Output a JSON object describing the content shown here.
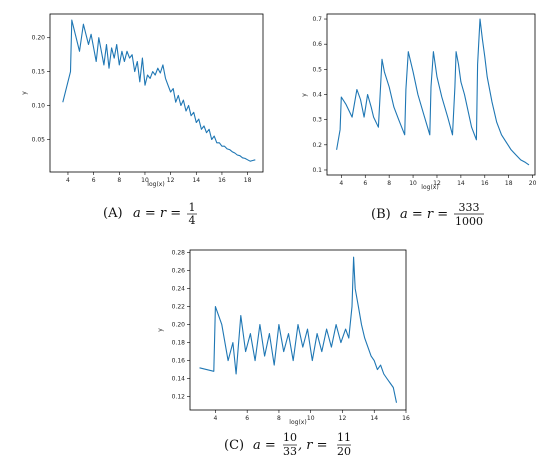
{
  "chart_data": [
    {
      "type": "line",
      "caption": {
        "label": "(A)",
        "math": "a = r =",
        "num": "1",
        "den": "4"
      },
      "xlabel": "log(x)",
      "ylabel": "y",
      "xlim": [
        2.6,
        19.2
      ],
      "ylim": [
        0.002,
        0.235
      ],
      "xticks": [
        4,
        6,
        8,
        10,
        12,
        14,
        16,
        18
      ],
      "yticks": [
        0.05,
        0.1,
        0.15,
        0.2
      ],
      "ytick_labels": [
        "0.05",
        "0.10",
        "0.15",
        "0.20"
      ],
      "series": [
        {
          "x": [
            3.6,
            4.2,
            4.3,
            4.9,
            5.2,
            5.6,
            5.8,
            6.2,
            6.4,
            6.8,
            7.0,
            7.2,
            7.4,
            7.6,
            7.8,
            8.0,
            8.2,
            8.4,
            8.6,
            8.8,
            9.0,
            9.2,
            9.4,
            9.6,
            9.8,
            10.0,
            10.2,
            10.4,
            10.6,
            10.8,
            11.0,
            11.2,
            11.4,
            11.6,
            11.8,
            12.0,
            12.2,
            12.4,
            12.6,
            12.8,
            13.0,
            13.2,
            13.4,
            13.6,
            13.8,
            14.0,
            14.2,
            14.4,
            14.6,
            14.8,
            15.0,
            15.2,
            15.4,
            15.6,
            15.8,
            16.0,
            16.2,
            16.4,
            16.6,
            16.8,
            17.0,
            17.2,
            17.4,
            17.6,
            17.8,
            18.0,
            18.2,
            18.4,
            18.6
          ],
          "y": [
            0.105,
            0.15,
            0.226,
            0.18,
            0.22,
            0.19,
            0.205,
            0.165,
            0.2,
            0.16,
            0.19,
            0.155,
            0.185,
            0.17,
            0.19,
            0.16,
            0.18,
            0.165,
            0.18,
            0.17,
            0.175,
            0.15,
            0.165,
            0.135,
            0.17,
            0.13,
            0.145,
            0.14,
            0.15,
            0.145,
            0.155,
            0.148,
            0.16,
            0.14,
            0.13,
            0.12,
            0.125,
            0.105,
            0.115,
            0.1,
            0.108,
            0.092,
            0.1,
            0.085,
            0.09,
            0.075,
            0.08,
            0.065,
            0.07,
            0.06,
            0.065,
            0.05,
            0.055,
            0.045,
            0.045,
            0.04,
            0.04,
            0.036,
            0.035,
            0.032,
            0.03,
            0.027,
            0.026,
            0.023,
            0.022,
            0.02,
            0.018,
            0.019,
            0.02
          ]
        }
      ]
    },
    {
      "type": "line",
      "caption": {
        "label": "(B)",
        "math": "a = r =",
        "num": "333",
        "den": "1000"
      },
      "xlabel": "log(x)",
      "ylabel": "y",
      "xlim": [
        2.8,
        20.2
      ],
      "ylim": [
        0.08,
        0.72
      ],
      "xticks": [
        4,
        6,
        8,
        10,
        12,
        14,
        16,
        18,
        20
      ],
      "yticks": [
        0.1,
        0.2,
        0.3,
        0.4,
        0.5,
        0.6,
        0.7
      ],
      "ytick_labels": [
        "0.1",
        "0.2",
        "0.3",
        "0.4",
        "0.5",
        "0.6",
        "0.7"
      ],
      "series": [
        {
          "x": [
            3.6,
            3.9,
            4.0,
            4.4,
            4.9,
            5.3,
            5.6,
            5.9,
            6.2,
            6.5,
            6.7,
            7.1,
            7.4,
            7.6,
            8.0,
            8.4,
            8.8,
            9.3,
            9.4,
            9.6,
            10.0,
            10.4,
            10.9,
            11.4,
            11.5,
            11.7,
            12.0,
            12.4,
            12.9,
            13.3,
            13.5,
            13.6,
            13.8,
            14.0,
            14.3,
            14.9,
            15.3,
            15.4,
            15.6,
            15.8,
            16.0,
            16.2,
            16.6,
            17.0,
            17.4,
            17.8,
            18.2,
            18.6,
            19.0,
            19.4,
            19.7
          ],
          "y": [
            0.18,
            0.26,
            0.39,
            0.36,
            0.31,
            0.42,
            0.38,
            0.31,
            0.4,
            0.35,
            0.31,
            0.27,
            0.54,
            0.49,
            0.43,
            0.35,
            0.3,
            0.24,
            0.42,
            0.57,
            0.49,
            0.4,
            0.32,
            0.24,
            0.43,
            0.57,
            0.47,
            0.39,
            0.31,
            0.24,
            0.43,
            0.57,
            0.52,
            0.45,
            0.4,
            0.27,
            0.22,
            0.52,
            0.7,
            0.62,
            0.55,
            0.47,
            0.37,
            0.29,
            0.24,
            0.21,
            0.18,
            0.16,
            0.14,
            0.13,
            0.12
          ]
        }
      ]
    },
    {
      "type": "line",
      "caption": {
        "label": "(C)",
        "math1": "a =",
        "num1": "10",
        "den1": "33",
        "math2": ", r =",
        "num2": "11",
        "den2": "20"
      },
      "xlabel": "log(x)",
      "ylabel": "y",
      "xlim": [
        2.4,
        16.0
      ],
      "ylim": [
        0.105,
        0.283
      ],
      "xticks": [
        4,
        6,
        8,
        10,
        12,
        14,
        16
      ],
      "yticks": [
        0.12,
        0.14,
        0.16,
        0.18,
        0.2,
        0.22,
        0.24,
        0.26,
        0.28
      ],
      "ytick_labels": [
        "0.12",
        "0.14",
        "0.16",
        "0.18",
        "0.20",
        "0.22",
        "0.24",
        "0.26",
        "0.28"
      ],
      "series": [
        {
          "x": [
            3.0,
            3.9,
            4.0,
            4.4,
            4.8,
            5.1,
            5.3,
            5.6,
            5.9,
            6.2,
            6.5,
            6.8,
            7.1,
            7.4,
            7.7,
            8.0,
            8.3,
            8.6,
            8.9,
            9.2,
            9.5,
            9.8,
            10.1,
            10.4,
            10.7,
            11.0,
            11.3,
            11.6,
            11.9,
            12.2,
            12.4,
            12.6,
            12.7,
            12.8,
            13.0,
            13.2,
            13.4,
            13.6,
            13.8,
            14.0,
            14.2,
            14.4,
            14.6,
            14.8,
            15.0,
            15.2,
            15.4
          ],
          "y": [
            0.152,
            0.148,
            0.22,
            0.2,
            0.16,
            0.18,
            0.145,
            0.21,
            0.17,
            0.19,
            0.16,
            0.2,
            0.165,
            0.19,
            0.155,
            0.2,
            0.17,
            0.19,
            0.16,
            0.2,
            0.175,
            0.195,
            0.16,
            0.19,
            0.17,
            0.195,
            0.175,
            0.2,
            0.18,
            0.195,
            0.185,
            0.22,
            0.275,
            0.24,
            0.22,
            0.2,
            0.185,
            0.175,
            0.165,
            0.16,
            0.15,
            0.155,
            0.145,
            0.14,
            0.135,
            0.13,
            0.113
          ]
        }
      ]
    }
  ]
}
